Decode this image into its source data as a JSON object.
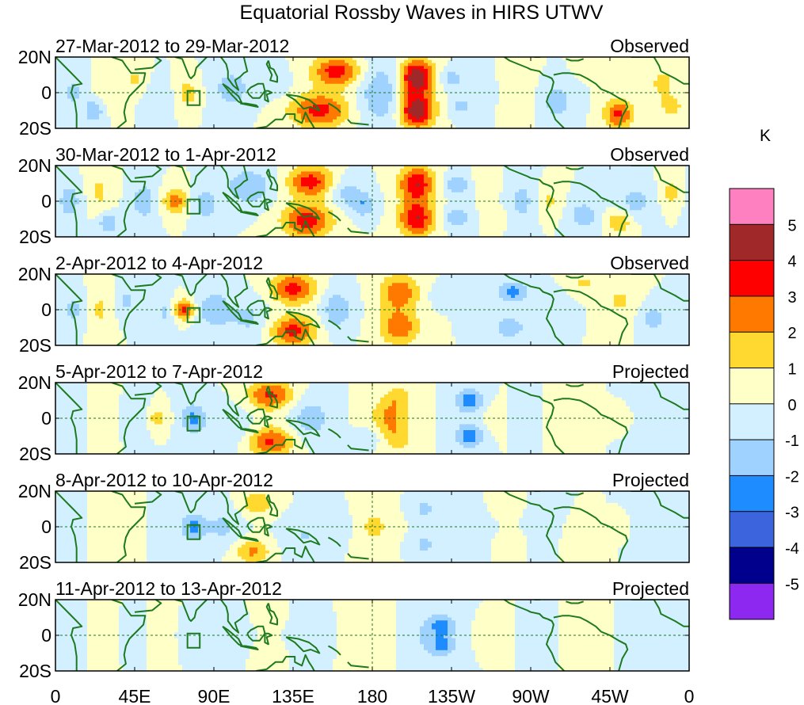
{
  "chart_data": {
    "type": "heatmap",
    "title": "Equatorial Rossby Waves in HIRS UTWV",
    "units": "K",
    "x_range": [
      0,
      360
    ],
    "y_range": [
      -20,
      20
    ],
    "x_ticks": [
      {
        "lon": 0,
        "label": "0"
      },
      {
        "lon": 45,
        "label": "45E"
      },
      {
        "lon": 90,
        "label": "90E"
      },
      {
        "lon": 135,
        "label": "135E"
      },
      {
        "lon": 180,
        "label": "180"
      },
      {
        "lon": 225,
        "label": "135W"
      },
      {
        "lon": 270,
        "label": "90W"
      },
      {
        "lon": 315,
        "label": "45W"
      },
      {
        "lon": 360,
        "label": "0"
      }
    ],
    "y_ticks": [
      {
        "lat": 20,
        "label": "20N"
      },
      {
        "lat": 0,
        "label": "0"
      },
      {
        "lat": -20,
        "label": "20S"
      }
    ],
    "colorbar": {
      "label": "K",
      "levels": [
        5,
        4,
        3,
        2,
        1,
        0,
        -1,
        -2,
        -3,
        -4,
        -5
      ],
      "colors": [
        "#ff80c0",
        "#a02828",
        "#ff0000",
        "#ff7800",
        "#ffd830",
        "#ffffc8",
        "#d2f0ff",
        "#a0d2ff",
        "#1e8cff",
        "#3c64dc",
        "#00008c",
        "#8c28f0"
      ]
    },
    "reference_box": {
      "lon": [
        75,
        82
      ],
      "lat": [
        -7,
        1
      ]
    },
    "panels": [
      {
        "date_range": "27-Mar-2012 to 29-Mar-2012",
        "status": "Observed",
        "blobs": [
          [
            10,
            0,
            4,
            7,
            -1.3
          ],
          [
            30,
            0,
            5,
            7,
            1.0
          ],
          [
            22,
            -10,
            4,
            5,
            -2.0
          ],
          [
            45,
            8,
            4,
            5,
            1.2
          ],
          [
            60,
            -3,
            5,
            6,
            -1.0
          ],
          [
            75,
            0,
            5,
            6,
            1.5
          ],
          [
            100,
            2,
            8,
            8,
            -1.5
          ],
          [
            125,
            5,
            6,
            6,
            -0.8
          ],
          [
            160,
            12,
            10,
            6,
            3.6
          ],
          [
            150,
            -10,
            12,
            7,
            3.4
          ],
          [
            185,
            0,
            10,
            14,
            -1.8
          ],
          [
            205,
            9,
            7,
            7,
            5.0
          ],
          [
            205,
            -10,
            7,
            7,
            5.0
          ],
          [
            225,
            8,
            5,
            4,
            -1.5
          ],
          [
            230,
            -8,
            5,
            4,
            -1.2
          ],
          [
            245,
            0,
            7,
            10,
            -0.8
          ],
          [
            260,
            0,
            8,
            12,
            1.0
          ],
          [
            285,
            -5,
            7,
            8,
            -1.5
          ],
          [
            305,
            15,
            6,
            5,
            0.8
          ],
          [
            320,
            -12,
            6,
            6,
            3.2
          ],
          [
            345,
            5,
            5,
            6,
            1.5
          ],
          [
            350,
            -8,
            4,
            4,
            1.8
          ]
        ]
      },
      {
        "date_range": "30-Mar-2012 to 1-Apr-2012",
        "status": "Observed",
        "blobs": [
          [
            8,
            0,
            5,
            7,
            -1.6
          ],
          [
            25,
            5,
            5,
            8,
            1.2
          ],
          [
            30,
            -12,
            4,
            4,
            -2.0
          ],
          [
            50,
            0,
            5,
            8,
            -1.6
          ],
          [
            68,
            0,
            5,
            5,
            2.6
          ],
          [
            85,
            -2,
            5,
            6,
            -1.8
          ],
          [
            110,
            8,
            9,
            7,
            -2.0
          ],
          [
            145,
            11,
            9,
            6,
            3.5
          ],
          [
            143,
            -11,
            10,
            7,
            3.6
          ],
          [
            165,
            5,
            6,
            6,
            -1.5
          ],
          [
            175,
            -2,
            5,
            5,
            -1.8
          ],
          [
            205,
            10,
            7,
            7,
            4.0
          ],
          [
            205,
            -10,
            7,
            7,
            4.0
          ],
          [
            228,
            9,
            5,
            4,
            -2.0
          ],
          [
            228,
            -9,
            5,
            4,
            -1.8
          ],
          [
            245,
            10,
            5,
            4,
            1.0
          ],
          [
            250,
            -8,
            5,
            4,
            0.8
          ],
          [
            265,
            0,
            6,
            8,
            -1.4
          ],
          [
            280,
            0,
            5,
            6,
            1.2
          ],
          [
            300,
            -8,
            6,
            6,
            -1.6
          ],
          [
            320,
            -12,
            5,
            4,
            2.0
          ],
          [
            330,
            0,
            6,
            6,
            -1.6
          ],
          [
            350,
            5,
            4,
            5,
            1.6
          ]
        ]
      },
      {
        "date_range": "2-Apr-2012 to 4-Apr-2012",
        "status": "Observed",
        "blobs": [
          [
            10,
            0,
            5,
            7,
            -1.3
          ],
          [
            25,
            0,
            5,
            8,
            1.2
          ],
          [
            40,
            5,
            4,
            6,
            -1.2
          ],
          [
            62,
            -2,
            4,
            6,
            -1.2
          ],
          [
            73,
            0,
            4,
            4,
            3.3
          ],
          [
            90,
            0,
            7,
            8,
            -1.7
          ],
          [
            110,
            -5,
            8,
            8,
            -1.2
          ],
          [
            135,
            12,
            9,
            6,
            3.4
          ],
          [
            135,
            -12,
            9,
            6,
            3.4
          ],
          [
            160,
            0,
            6,
            8,
            -1.8
          ],
          [
            195,
            10,
            8,
            7,
            2.8
          ],
          [
            195,
            -10,
            8,
            7,
            2.8
          ],
          [
            220,
            8,
            5,
            4,
            -0.8
          ],
          [
            240,
            0,
            5,
            6,
            -1.0
          ],
          [
            260,
            10,
            6,
            4,
            -2.5
          ],
          [
            258,
            -10,
            6,
            4,
            -2.0
          ],
          [
            285,
            0,
            5,
            5,
            -1.0
          ],
          [
            300,
            15,
            5,
            4,
            1.2
          ],
          [
            320,
            5,
            6,
            7,
            1.2
          ],
          [
            340,
            -5,
            5,
            5,
            -1.5
          ]
        ]
      },
      {
        "date_range": "5-Apr-2012 to 7-Apr-2012",
        "status": "Projected",
        "blobs": [
          [
            10,
            0,
            6,
            8,
            -1.0
          ],
          [
            25,
            0,
            6,
            8,
            0.8
          ],
          [
            45,
            0,
            5,
            6,
            -1.0
          ],
          [
            58,
            0,
            4,
            4,
            1.6
          ],
          [
            78,
            0,
            5,
            6,
            -2.2
          ],
          [
            100,
            -5,
            10,
            8,
            -1.0
          ],
          [
            122,
            13,
            9,
            6,
            3.2
          ],
          [
            122,
            -13,
            9,
            6,
            3.2
          ],
          [
            145,
            0,
            8,
            8,
            -1.6
          ],
          [
            180,
            -10,
            5,
            4,
            -1.0
          ],
          [
            190,
            0,
            8,
            8,
            2.2
          ],
          [
            195,
            12,
            6,
            5,
            1.2
          ],
          [
            195,
            -12,
            6,
            5,
            1.2
          ],
          [
            235,
            10,
            6,
            5,
            -2.5
          ],
          [
            235,
            -10,
            6,
            5,
            -2.5
          ],
          [
            250,
            0,
            5,
            6,
            0.8
          ],
          [
            265,
            0,
            5,
            6,
            -0.8
          ],
          [
            290,
            0,
            5,
            6,
            0.8
          ],
          [
            320,
            0,
            4,
            3,
            0.8
          ],
          [
            340,
            0,
            6,
            6,
            -0.8
          ]
        ]
      },
      {
        "date_range": "8-Apr-2012 to 10-Apr-2012",
        "status": "Projected",
        "blobs": [
          [
            10,
            0,
            6,
            8,
            -0.8
          ],
          [
            25,
            0,
            6,
            8,
            0.8
          ],
          [
            45,
            0,
            5,
            6,
            0.8
          ],
          [
            60,
            0,
            5,
            6,
            -0.8
          ],
          [
            78,
            0,
            5,
            5,
            -2.2
          ],
          [
            95,
            0,
            8,
            8,
            -1.2
          ],
          [
            115,
            13,
            7,
            5,
            1.8
          ],
          [
            112,
            -14,
            7,
            5,
            2.2
          ],
          [
            140,
            -5,
            8,
            8,
            -1.0
          ],
          [
            160,
            0,
            8,
            8,
            -1.0
          ],
          [
            180,
            0,
            10,
            10,
            1.2
          ],
          [
            210,
            10,
            7,
            5,
            -1.2
          ],
          [
            210,
            -10,
            7,
            5,
            -1.2
          ],
          [
            240,
            0,
            6,
            6,
            -0.8
          ],
          [
            255,
            10,
            5,
            4,
            0.8
          ],
          [
            258,
            -8,
            5,
            4,
            0.8
          ],
          [
            275,
            0,
            5,
            6,
            -0.8
          ],
          [
            300,
            -8,
            5,
            5,
            0.8
          ],
          [
            320,
            0,
            3,
            3,
            0.8
          ],
          [
            340,
            0,
            6,
            6,
            -0.6
          ]
        ]
      },
      {
        "date_range": "11-Apr-2012 to 13-Apr-2012",
        "status": "Projected",
        "blobs": [
          [
            10,
            0,
            6,
            8,
            -0.6
          ],
          [
            25,
            0,
            5,
            8,
            0.6
          ],
          [
            45,
            0,
            5,
            6,
            -0.6
          ],
          [
            60,
            0,
            5,
            6,
            0.6
          ],
          [
            78,
            0,
            5,
            5,
            -0.8
          ],
          [
            100,
            0,
            8,
            8,
            -0.8
          ],
          [
            120,
            10,
            6,
            5,
            0.7
          ],
          [
            120,
            -10,
            6,
            5,
            0.7
          ],
          [
            145,
            0,
            8,
            8,
            -0.6
          ],
          [
            180,
            0,
            10,
            10,
            0.8
          ],
          [
            210,
            0,
            10,
            12,
            -1.0
          ],
          [
            220,
            5,
            5,
            4,
            -2.1
          ],
          [
            220,
            -6,
            5,
            4,
            -1.8
          ],
          [
            250,
            0,
            6,
            6,
            0.6
          ],
          [
            270,
            0,
            6,
            6,
            -0.6
          ],
          [
            300,
            0,
            5,
            6,
            0.6
          ],
          [
            340,
            0,
            6,
            6,
            -0.6
          ]
        ]
      }
    ]
  }
}
